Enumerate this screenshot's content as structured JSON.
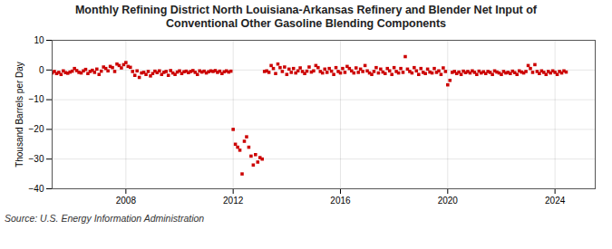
{
  "chart_data": {
    "type": "scatter",
    "title": "Monthly Refining District North Louisiana-Arkansas Refinery and Blender Net Input of\nConventional Other Gasoline Blending Components",
    "ylabel": "Thousand Barrels per Day",
    "annotations": [
      "Source: U.S. Energy Information Administration"
    ],
    "color": "#cc0000",
    "marker": "square",
    "grid": true,
    "xlim": [
      2005.25,
      2025.5
    ],
    "xticks": [
      2008,
      2012,
      2016,
      2020,
      2024
    ],
    "ylim": [
      -40,
      10
    ],
    "yticks": [
      -40,
      -30,
      -20,
      -10,
      0,
      10
    ],
    "x": [
      2005.25,
      2005.333,
      2005.417,
      2005.5,
      2005.583,
      2005.667,
      2005.75,
      2005.833,
      2005.917,
      2006.0,
      2006.083,
      2006.167,
      2006.25,
      2006.333,
      2006.417,
      2006.5,
      2006.583,
      2006.667,
      2006.75,
      2006.833,
      2006.917,
      2007.0,
      2007.083,
      2007.167,
      2007.25,
      2007.333,
      2007.417,
      2007.5,
      2007.583,
      2007.667,
      2007.75,
      2007.833,
      2007.917,
      2008.0,
      2008.083,
      2008.167,
      2008.25,
      2008.333,
      2008.417,
      2008.5,
      2008.583,
      2008.667,
      2008.75,
      2008.833,
      2008.917,
      2009.0,
      2009.083,
      2009.167,
      2009.25,
      2009.333,
      2009.417,
      2009.5,
      2009.583,
      2009.667,
      2009.75,
      2009.833,
      2009.917,
      2010.0,
      2010.083,
      2010.167,
      2010.25,
      2010.333,
      2010.417,
      2010.5,
      2010.583,
      2010.667,
      2010.75,
      2010.833,
      2010.917,
      2011.0,
      2011.083,
      2011.167,
      2011.25,
      2011.333,
      2011.417,
      2011.5,
      2011.583,
      2011.667,
      2011.75,
      2011.833,
      2011.917,
      2012.0,
      2012.083,
      2012.167,
      2012.25,
      2012.333,
      2012.417,
      2012.5,
      2012.583,
      2012.667,
      2012.75,
      2012.833,
      2012.917,
      2013.0,
      2013.083,
      2013.167,
      2013.25,
      2013.333,
      2013.417,
      2013.5,
      2013.583,
      2013.667,
      2013.75,
      2013.833,
      2013.917,
      2014.0,
      2014.083,
      2014.167,
      2014.25,
      2014.333,
      2014.417,
      2014.5,
      2014.583,
      2014.667,
      2014.75,
      2014.833,
      2014.917,
      2015.0,
      2015.083,
      2015.167,
      2015.25,
      2015.333,
      2015.417,
      2015.5,
      2015.583,
      2015.667,
      2015.75,
      2015.833,
      2015.917,
      2016.0,
      2016.083,
      2016.167,
      2016.25,
      2016.333,
      2016.417,
      2016.5,
      2016.583,
      2016.667,
      2016.75,
      2016.833,
      2016.917,
      2017.0,
      2017.083,
      2017.167,
      2017.25,
      2017.333,
      2017.417,
      2017.5,
      2017.583,
      2017.667,
      2017.75,
      2017.833,
      2017.917,
      2018.0,
      2018.083,
      2018.167,
      2018.25,
      2018.333,
      2018.417,
      2018.5,
      2018.583,
      2018.667,
      2018.75,
      2018.833,
      2018.917,
      2019.0,
      2019.083,
      2019.167,
      2019.25,
      2019.333,
      2019.417,
      2019.5,
      2019.583,
      2019.667,
      2019.75,
      2019.833,
      2019.917,
      2020.0,
      2020.083,
      2020.167,
      2020.25,
      2020.333,
      2020.417,
      2020.5,
      2020.583,
      2020.667,
      2020.75,
      2020.833,
      2020.917,
      2021.0,
      2021.083,
      2021.167,
      2021.25,
      2021.333,
      2021.417,
      2021.5,
      2021.583,
      2021.667,
      2021.75,
      2021.833,
      2021.917,
      2022.0,
      2022.083,
      2022.167,
      2022.25,
      2022.333,
      2022.417,
      2022.5,
      2022.583,
      2022.667,
      2022.75,
      2022.833,
      2022.917,
      2023.0,
      2023.083,
      2023.167,
      2023.25,
      2023.333,
      2023.417,
      2023.5,
      2023.583,
      2023.667,
      2023.75,
      2023.833,
      2023.917,
      2024.0,
      2024.083,
      2024.167,
      2024.25,
      2024.333,
      2024.417
    ],
    "values": [
      -1.0,
      -0.5,
      -1.2,
      -0.8,
      -1.5,
      -0.3,
      -0.9,
      -1.1,
      -0.7,
      -0.4,
      0.5,
      -0.2,
      -0.8,
      -1.0,
      -0.3,
      0.2,
      -1.2,
      -0.5,
      -0.1,
      -0.8,
      0.3,
      -1.5,
      -0.4,
      1.0,
      0.5,
      -0.3,
      1.2,
      0.8,
      -0.5,
      2.0,
      1.5,
      0.7,
      1.8,
      2.5,
      1.2,
      0.9,
      -0.5,
      -1.8,
      -0.3,
      -2.5,
      -1.0,
      -0.8,
      -1.5,
      -0.5,
      -2.0,
      -1.2,
      -0.4,
      -0.9,
      -0.3,
      -1.5,
      -0.8,
      -0.5,
      -1.8,
      -0.2,
      -1.0,
      -1.5,
      -0.7,
      -0.3,
      -1.2,
      -0.6,
      -0.4,
      -0.9,
      -0.5,
      -0.2,
      -0.8,
      -1.5,
      -0.3,
      -0.7,
      -0.4,
      -1.0,
      -0.6,
      -0.3,
      -0.5,
      -0.2,
      -0.8,
      -0.4,
      -1.2,
      -0.6,
      -0.3,
      -0.7,
      -0.4,
      -20.0,
      -25.0,
      -26.0,
      -27.0,
      -35.0,
      -24.0,
      -22.5,
      -26.0,
      -29.0,
      -32.0,
      -28.5,
      -31.0,
      -29.5,
      -30.0,
      -0.5,
      -0.3,
      -0.8,
      1.5,
      0.5,
      -1.2,
      2.0,
      0.8,
      -0.5,
      1.0,
      -1.5,
      0.3,
      -0.8,
      0.5,
      -1.0,
      -0.3,
      0.7,
      -0.5,
      -1.2,
      -0.4,
      1.0,
      -0.7,
      -0.3,
      1.5,
      0.8,
      -0.5,
      -1.0,
      0.3,
      -0.8,
      0.5,
      -0.4,
      -1.5,
      0.8,
      -0.5,
      -1.0,
      0.5,
      -0.8,
      1.2,
      0.5,
      -0.3,
      -1.0,
      0.7,
      -0.8,
      0.3,
      -0.5,
      1.5,
      -0.3,
      -1.0,
      -1.5,
      -0.5,
      0.8,
      -1.0,
      0.3,
      -0.7,
      -1.2,
      0.5,
      -0.3,
      -1.5,
      0.8,
      -0.5,
      -1.0,
      0.5,
      -0.8,
      4.5,
      0.3,
      -0.5,
      -1.0,
      0.8,
      -0.3,
      -1.5,
      0.5,
      -0.8,
      -1.2,
      0.3,
      -0.7,
      -1.0,
      0.5,
      -0.8,
      -0.3,
      -1.5,
      0.7,
      -0.5,
      -5.0,
      -3.5,
      -0.8,
      -0.5,
      -1.2,
      -0.7,
      -1.5,
      -0.4,
      -0.9,
      -0.5,
      -1.0,
      -0.3,
      -0.8,
      -1.5,
      -0.4,
      -1.0,
      -0.6,
      -1.2,
      -0.5,
      -0.8,
      -1.5,
      -0.3,
      -0.7,
      -1.0,
      -1.5,
      -0.5,
      -1.0,
      -0.8,
      -1.2,
      -0.4,
      -0.9,
      -1.5,
      -0.3,
      -0.7,
      -1.0,
      -0.5,
      1.5,
      0.5,
      -0.8,
      1.8,
      -0.5,
      -1.2,
      -0.3,
      -0.8,
      -1.5,
      -0.5,
      -1.0,
      -0.3,
      -0.8,
      -1.5,
      -0.5,
      -1.0,
      -0.3,
      -0.7
    ]
  }
}
